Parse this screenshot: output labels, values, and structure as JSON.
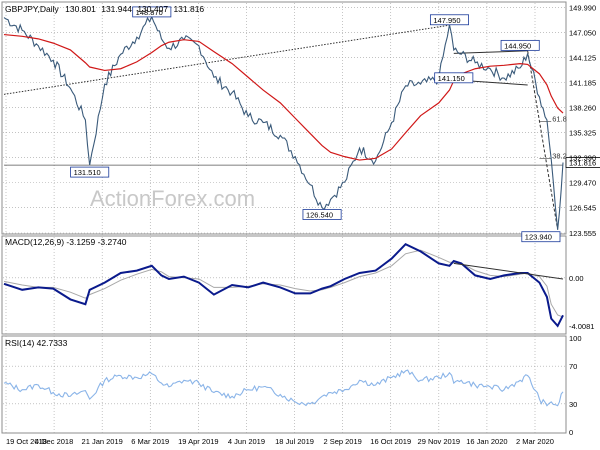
{
  "header": {
    "symbol": "GBPJPY",
    "timeframe": "Daily",
    "open": "130.801",
    "high": "131.944",
    "low": "130.407",
    "close": "131.816"
  },
  "watermark": "ActionForex.com",
  "colors": {
    "price": "#3a5a7a",
    "ma": "#d01818",
    "macd": "#0a1a8c",
    "signal": "#a8a8a8",
    "trendline": "#303030",
    "grid": "#a0a0a0",
    "label_border": "#1a3a9a",
    "rsi": "#8ab4e8"
  },
  "chart_data": [
    {
      "type": "line",
      "panel": "price",
      "title": "GBPJPY, Daily",
      "ylim": [
        123.555,
        150.5
      ],
      "y_ticks": [
        "149.990",
        "147.050",
        "144.125",
        "141.185",
        "138.260",
        "135.325",
        "132.390",
        "129.470",
        "126.545",
        "123.555"
      ],
      "x_tick_labels": [
        "19 Oct 2018",
        "4 Dec 2018",
        "21 Jan 2019",
        "6 Mar 2019",
        "19 Apr 2019",
        "4 Jun 2019",
        "18 Jul 2019",
        "2 Sep 2019",
        "16 Oct 2019",
        "29 Nov 2019",
        "16 Jan 2020",
        "2 Mar 2020"
      ],
      "x": [
        "2018-10-19",
        "2018-11-05",
        "2018-11-20",
        "2018-12-04",
        "2018-12-20",
        "2019-01-03",
        "2019-01-07",
        "2019-01-21",
        "2019-02-05",
        "2019-02-20",
        "2019-03-06",
        "2019-03-15",
        "2019-03-22",
        "2019-04-05",
        "2019-04-19",
        "2019-05-03",
        "2019-05-20",
        "2019-06-04",
        "2019-06-18",
        "2019-07-04",
        "2019-07-18",
        "2019-08-01",
        "2019-08-12",
        "2019-08-20",
        "2019-09-02",
        "2019-09-16",
        "2019-10-01",
        "2019-10-16",
        "2019-10-29",
        "2019-11-12",
        "2019-11-29",
        "2019-12-09",
        "2019-12-13",
        "2019-12-20",
        "2020-01-02",
        "2020-01-16",
        "2020-01-29",
        "2020-02-13",
        "2020-02-20",
        "2020-03-02",
        "2020-03-09",
        "2020-03-13",
        "2020-03-19",
        "2020-03-24"
      ],
      "series": [
        {
          "kind": "price",
          "values": [
            148.8,
            147.3,
            145.5,
            143.8,
            140.5,
            136.8,
            131.5,
            141.0,
            144.5,
            146.5,
            148.87,
            146.3,
            145.2,
            146.2,
            145.5,
            141.8,
            140.0,
            137.2,
            136.5,
            135.0,
            132.5,
            129.2,
            126.54,
            127.5,
            129.5,
            133.5,
            132.0,
            136.5,
            140.8,
            141.0,
            141.6,
            147.95,
            145.0,
            144.5,
            143.5,
            142.8,
            141.7,
            142.9,
            144.6,
            139.5,
            136.8,
            132.2,
            123.94,
            131.816
          ]
        },
        {
          "kind": "moving average",
          "values": [
            146.8,
            146.6,
            146.3,
            145.8,
            145.0,
            143.5,
            143.0,
            142.6,
            142.8,
            143.6,
            144.7,
            145.5,
            145.9,
            146.2,
            146.0,
            144.8,
            143.4,
            141.8,
            140.3,
            138.8,
            137.0,
            135.2,
            133.8,
            133.0,
            132.5,
            132.1,
            132.3,
            133.4,
            135.3,
            137.3,
            138.8,
            140.3,
            141.4,
            142.2,
            142.8,
            143.1,
            143.2,
            143.4,
            143.3,
            142.2,
            140.9,
            139.6,
            138.2,
            137.6
          ]
        }
      ],
      "annotations": [
        {
          "text": "148.870",
          "x": "2019-03-06",
          "y": 148.87
        },
        {
          "text": "131.510",
          "x": "2019-01-07",
          "y": 131.51
        },
        {
          "text": "126.540",
          "x": "2019-08-12",
          "y": 126.54
        },
        {
          "text": "147.950",
          "x": "2019-12-09",
          "y": 147.95
        },
        {
          "text": "144.950",
          "x": "2020-02-13",
          "y": 144.95
        },
        {
          "text": "141.150",
          "x": "2019-12-13",
          "y": 141.15
        },
        {
          "text": "123.940",
          "x": "2020-03-19",
          "y": 123.94
        },
        {
          "text": "61.8",
          "x": "2020-03-13",
          "y": 136.6
        },
        {
          "text": "38.2",
          "x": "2020-03-13",
          "y": 132.3
        },
        {
          "text": "131.816",
          "x": "2020-03-24",
          "y": 131.816
        }
      ],
      "horizontal_lines": [
        {
          "y": 131.51,
          "x_from": "2018-10-19",
          "x_to": "2020-03-24"
        },
        {
          "y": 136.6,
          "x_from": "2020-03-02",
          "x_to": "2020-03-13"
        },
        {
          "y": 132.3,
          "x_from": "2020-03-02",
          "x_to": "2020-03-13"
        }
      ],
      "trendlines": [
        {
          "style": "dotted",
          "from": {
            "x": "2018-10-19",
            "y": 139.8
          },
          "to": {
            "x": "2019-12-09",
            "y": 147.9
          }
        },
        {
          "style": "solid",
          "from": {
            "x": "2019-12-13",
            "y": 144.6
          },
          "to": {
            "x": "2020-02-20",
            "y": 144.9
          }
        },
        {
          "style": "solid",
          "from": {
            "x": "2019-12-13",
            "y": 141.5
          },
          "to": {
            "x": "2020-02-20",
            "y": 140.9
          }
        },
        {
          "style": "dashed",
          "from": {
            "x": "2020-02-20",
            "y": 144.9
          },
          "to": {
            "x": "2020-03-19",
            "y": 123.94
          }
        }
      ]
    },
    {
      "type": "line",
      "panel": "macd",
      "title": "MACD(12,26,9) -3.1259 -3.2740",
      "ylim": [
        -4.6,
        3.4
      ],
      "y_ticks": [
        "0.00",
        "-4.0081"
      ],
      "series": [
        {
          "kind": "macd line",
          "values": [
            -0.5,
            -1.0,
            -0.8,
            -0.9,
            -1.8,
            -2.2,
            -1.0,
            -0.4,
            0.4,
            0.6,
            1.0,
            0.2,
            -0.1,
            0.1,
            -0.4,
            -1.4,
            -0.6,
            -0.8,
            -0.4,
            -0.8,
            -1.3,
            -1.3,
            -0.9,
            -0.7,
            -0.1,
            0.4,
            0.6,
            1.6,
            2.8,
            2.2,
            1.2,
            1.0,
            1.4,
            1.2,
            0.2,
            -0.1,
            0.2,
            0.4,
            0.4,
            -0.4,
            -1.6,
            -3.4,
            -4.0081,
            -3.1259
          ]
        },
        {
          "kind": "signal line",
          "values": [
            -0.3,
            -0.6,
            -0.8,
            -0.8,
            -1.2,
            -1.7,
            -1.4,
            -0.9,
            -0.2,
            0.3,
            0.7,
            0.5,
            0.1,
            0.0,
            -0.1,
            -0.8,
            -0.8,
            -0.7,
            -0.5,
            -0.6,
            -0.9,
            -1.1,
            -1.0,
            -0.8,
            -0.4,
            0.1,
            0.4,
            1.0,
            2.0,
            2.3,
            1.7,
            1.3,
            1.3,
            1.2,
            0.6,
            0.2,
            0.1,
            0.3,
            0.4,
            0.1,
            -0.7,
            -2.2,
            -3.1,
            -3.274
          ]
        }
      ],
      "trendlines": [
        {
          "style": "solid",
          "from": {
            "x": "2019-12-13",
            "y": 1.2
          },
          "to": {
            "x": "2020-03-24",
            "y": -0.1
          }
        }
      ]
    },
    {
      "type": "line",
      "panel": "rsi",
      "title": "RSI(14) 42.7333",
      "ylim": [
        0,
        100
      ],
      "y_ticks": [
        "100",
        "70",
        "30",
        "0"
      ],
      "guide_lines": [
        70,
        30
      ],
      "series": [
        {
          "kind": "rsi",
          "values": [
            52,
            45,
            50,
            42,
            38,
            44,
            35,
            55,
            60,
            58,
            62,
            52,
            48,
            55,
            52,
            42,
            38,
            45,
            48,
            40,
            32,
            30,
            38,
            42,
            45,
            55,
            50,
            58,
            65,
            55,
            58,
            63,
            52,
            55,
            50,
            48,
            45,
            55,
            60,
            35,
            28,
            32,
            28,
            42.7333
          ]
        }
      ]
    }
  ]
}
